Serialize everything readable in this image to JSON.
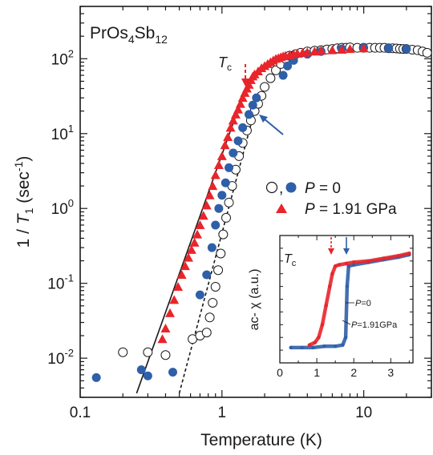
{
  "colors": {
    "blue": "#2f5fa8",
    "red": "#e8252b",
    "black": "#1a1a1a",
    "open": "#ffffff"
  },
  "chart_data": [
    {
      "type": "scatter",
      "title": "PrOs4Sb12",
      "title_parts": {
        "base": "PrOs",
        "sub1": "4",
        "mid": "Sb",
        "sub2": "12"
      },
      "xlabel": "Temperature (K)",
      "ylabel": "1 / T1 (sec-1)",
      "ylabel_parts": {
        "pre": "1 / ",
        "italic": "T",
        "sub": "1",
        "post": " (sec",
        "sup": "-1",
        "end": ")"
      },
      "x_scale": "log",
      "y_scale": "log",
      "xlim": [
        0.1,
        30
      ],
      "ylim": [
        0.003,
        500
      ],
      "x_ticks": [
        {
          "value": 0.1,
          "label": "0.1"
        },
        {
          "value": 1,
          "label": "1"
        },
        {
          "value": 10,
          "label": "10"
        }
      ],
      "y_ticks": [
        {
          "value": 0.01,
          "base": "10",
          "exp": "-2"
        },
        {
          "value": 0.1,
          "base": "10",
          "exp": "-1"
        },
        {
          "value": 1,
          "base": "10",
          "exp": "0"
        },
        {
          "value": 10,
          "base": "10",
          "exp": "1"
        },
        {
          "value": 100,
          "base": "10",
          "exp": "2"
        }
      ],
      "legend": {
        "placement": "center-right",
        "entries": [
          {
            "markers": [
              "open-circle",
              "blue-circle"
            ],
            "separator": ",",
            "label_italic": "P",
            "label_rest": " = 0"
          },
          {
            "markers": [
              "red-triangle"
            ],
            "label_italic": "P",
            "label_rest": " = 1.91 GPa"
          }
        ]
      },
      "annotations": {
        "tc_label": "T",
        "tc_sub": "c",
        "tc_x": 1.5
      },
      "series": [
        {
          "marker": "open-circle",
          "x": [
            0.2,
            0.3,
            0.4,
            0.62,
            0.7,
            0.78,
            0.82,
            0.86,
            0.9,
            0.94,
            0.98,
            1.02,
            1.07,
            1.12,
            1.18,
            1.25,
            1.32,
            1.4,
            1.5,
            1.6,
            1.7,
            1.8,
            1.9,
            2.0,
            2.2,
            2.4,
            2.6,
            2.8,
            3.0,
            3.3,
            3.6,
            4.0,
            4.5,
            5.0,
            5.5,
            6.0,
            6.5,
            7.0,
            7.5,
            8.0,
            9.0,
            10.0,
            11.0,
            12.0,
            13.0,
            14.0,
            15.0,
            16.0,
            17.0,
            18.0,
            19.0,
            20.0,
            22.0,
            24.0,
            26.0,
            28.0
          ],
          "y": [
            0.012,
            0.012,
            0.011,
            0.018,
            0.02,
            0.022,
            0.035,
            0.055,
            0.09,
            0.15,
            0.25,
            0.45,
            0.75,
            1.2,
            2.0,
            3.3,
            5.0,
            7.5,
            11,
            15,
            20,
            25,
            32,
            42,
            55,
            70,
            85,
            100,
            110,
            115,
            120,
            125,
            128,
            130,
            133,
            135,
            138,
            140,
            140,
            142,
            140,
            140,
            140,
            140,
            140,
            140,
            138,
            138,
            137,
            136,
            135,
            135,
            132,
            130,
            125,
            120
          ]
        },
        {
          "marker": "blue-circle",
          "x": [
            0.13,
            0.27,
            0.3,
            0.45,
            0.7,
            0.78,
            0.85,
            0.9,
            0.95,
            1.0,
            1.06,
            1.12,
            1.2,
            1.3,
            1.4,
            1.55,
            1.65,
            1.75,
            2.7,
            2.9,
            3.2,
            4.0,
            5.0,
            7.0,
            10.0,
            15.0,
            20.0
          ],
          "y": [
            0.0055,
            0.007,
            0.0058,
            0.0065,
            0.07,
            0.13,
            0.3,
            0.6,
            1.0,
            1.5,
            2.2,
            3.5,
            5.5,
            8.0,
            12,
            18,
            24,
            30,
            60,
            80,
            95,
            115,
            125,
            135,
            140,
            138,
            135
          ]
        },
        {
          "marker": "red-triangle",
          "x": [
            0.38,
            0.4,
            0.43,
            0.46,
            0.49,
            0.52,
            0.55,
            0.58,
            0.61,
            0.64,
            0.67,
            0.7,
            0.74,
            0.78,
            0.82,
            0.86,
            0.9,
            0.95,
            1.0,
            1.05,
            1.1,
            1.15,
            1.2,
            1.25,
            1.3,
            1.35,
            1.4,
            1.45,
            1.5,
            1.55,
            1.6,
            1.65,
            1.7,
            1.8,
            1.9,
            2.0,
            2.1,
            2.2,
            2.3,
            2.4,
            2.5,
            2.6,
            2.7,
            2.8,
            3.0,
            3.2,
            3.4,
            3.7,
            4.0,
            4.5,
            5.0,
            6.0,
            7.0,
            8.0,
            10.0
          ],
          "y": [
            0.018,
            0.025,
            0.04,
            0.06,
            0.09,
            0.13,
            0.17,
            0.22,
            0.28,
            0.35,
            0.45,
            0.6,
            0.8,
            1.1,
            1.5,
            2.0,
            2.8,
            3.8,
            5.0,
            7.0,
            9.0,
            12,
            15,
            18,
            21,
            25,
            30,
            35,
            40,
            45,
            52,
            58,
            62,
            68,
            75,
            80,
            85,
            90,
            95,
            100,
            102,
            105,
            108,
            110,
            112,
            115,
            118,
            120,
            122,
            125,
            128,
            130,
            132,
            135,
            138
          ]
        },
        {
          "type": "line",
          "style": "solid",
          "x": [
            0.25,
            1.5
          ],
          "y": [
            0.0034,
            45
          ]
        },
        {
          "type": "line",
          "style": "dashed",
          "x": [
            0.5,
            1.75
          ],
          "y": [
            0.0034,
            25
          ]
        }
      ]
    },
    {
      "type": "line",
      "title": "",
      "xlabel": "",
      "ylabel": "ac- χ (a.u.)",
      "xlim": [
        0,
        3.6
      ],
      "ylim": [
        0,
        1
      ],
      "x_ticks": [
        {
          "value": 0,
          "label": "0"
        },
        {
          "value": 1,
          "label": "1"
        },
        {
          "value": 2,
          "label": "2"
        },
        {
          "value": 3,
          "label": "3"
        }
      ],
      "annotations": {
        "tc_label": "T",
        "tc_sub": "c"
      },
      "series": [
        {
          "name": "P=0",
          "name_italic": "P",
          "name_rest": "=0",
          "color": "blue",
          "x": [
            0.3,
            0.6,
            0.9,
            1.2,
            1.5,
            1.7,
            1.78,
            1.82,
            1.86,
            2.0,
            2.4,
            2.8,
            3.2,
            3.5
          ],
          "y": [
            0.12,
            0.12,
            0.12,
            0.13,
            0.13,
            0.14,
            0.2,
            0.6,
            0.76,
            0.77,
            0.79,
            0.81,
            0.83,
            0.85
          ]
        },
        {
          "name": "P=1.91GPa",
          "name_italic": "P",
          "name_rest": "=1.91GPa",
          "color": "red",
          "x": [
            0.8,
            0.95,
            1.05,
            1.15,
            1.25,
            1.35,
            1.42,
            1.5,
            1.6,
            1.8,
            2.0,
            2.4,
            2.8,
            3.2,
            3.5
          ],
          "y": [
            0.14,
            0.16,
            0.2,
            0.3,
            0.45,
            0.6,
            0.7,
            0.76,
            0.77,
            0.78,
            0.79,
            0.8,
            0.82,
            0.84,
            0.86
          ]
        }
      ]
    }
  ]
}
